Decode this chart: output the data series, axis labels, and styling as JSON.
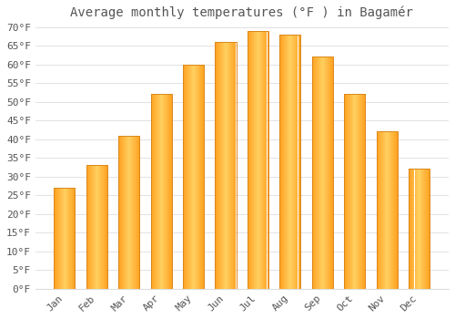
{
  "title": "Average monthly temperatures (°F ) in Bagamér",
  "months": [
    "Jan",
    "Feb",
    "Mar",
    "Apr",
    "May",
    "Jun",
    "Jul",
    "Aug",
    "Sep",
    "Oct",
    "Nov",
    "Dec"
  ],
  "values": [
    27,
    33,
    41,
    52,
    60,
    66,
    69,
    68,
    62,
    52,
    42,
    32
  ],
  "bar_color_light": "#FFD060",
  "bar_color_dark": "#FFA020",
  "background_color": "#FFFFFF",
  "grid_color": "#DDDDDD",
  "text_color": "#555555",
  "ylim": [
    0,
    70
  ],
  "ytick_step": 5,
  "title_fontsize": 10,
  "tick_fontsize": 8,
  "bar_width": 0.65,
  "figsize": [
    5.0,
    3.5
  ],
  "dpi": 100
}
